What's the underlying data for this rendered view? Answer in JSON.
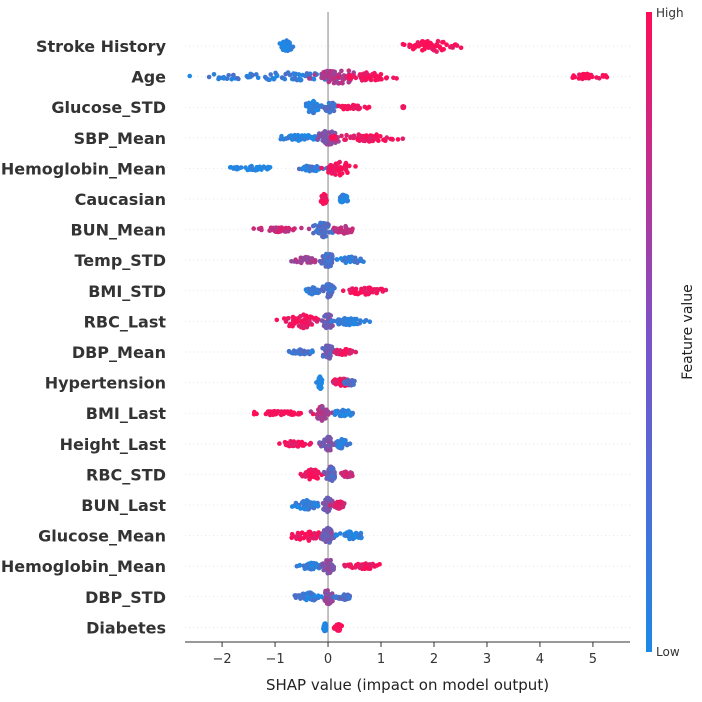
{
  "chart_data": {
    "type": "scatter",
    "subtype": "shap-beeswarm",
    "xlabel": "SHAP value (impact on model output)",
    "xlim": [
      -2.7,
      5.7
    ],
    "xticks": [
      -2,
      -1,
      0,
      1,
      2,
      3,
      4,
      5
    ],
    "colorbar": {
      "title": "Feature value",
      "high_label": "High",
      "low_label": "Low",
      "low_color": "#1e88e5",
      "high_color": "#ff0d57"
    },
    "features": [
      {
        "name": "Stroke History",
        "clusters": [
          {
            "center": -0.78,
            "spread": 0.12,
            "width": 0.8,
            "value": 0.0
          },
          {
            "center": 2.0,
            "spread": 0.55,
            "width": 0.75,
            "value": 1.0
          }
        ]
      },
      {
        "name": "Age",
        "clusters": [
          {
            "center": -0.9,
            "spread": 1.5,
            "width": 0.55,
            "value": 0.1
          },
          {
            "center": 0.2,
            "spread": 0.4,
            "width": 1.0,
            "value": 0.65
          },
          {
            "center": 0.8,
            "spread": 0.45,
            "width": 0.6,
            "value": 0.95
          },
          {
            "center": 4.9,
            "spread": 0.35,
            "width": 0.35,
            "value": 1.0
          }
        ]
      },
      {
        "name": "Glucose_STD",
        "clusters": [
          {
            "center": -0.3,
            "spread": 0.15,
            "width": 0.9,
            "value": 0.05
          },
          {
            "center": 0.05,
            "spread": 0.15,
            "width": 0.7,
            "value": 0.2
          },
          {
            "center": 0.45,
            "spread": 0.3,
            "width": 0.35,
            "value": 0.95
          },
          {
            "center": 1.42,
            "spread": 0.02,
            "width": 0.1,
            "value": 1.0
          }
        ]
      },
      {
        "name": "SBP_Mean",
        "clusters": [
          {
            "center": -0.5,
            "spread": 0.5,
            "width": 0.4,
            "value": 0.05
          },
          {
            "center": 0.0,
            "spread": 0.2,
            "width": 1.0,
            "value": 0.5
          },
          {
            "center": 0.8,
            "spread": 0.7,
            "width": 0.5,
            "value": 0.95
          }
        ]
      },
      {
        "name": "Hemoglobin_Mean",
        "clusters": [
          {
            "center": -1.45,
            "spread": 0.45,
            "width": 0.3,
            "value": 0.0
          },
          {
            "center": -0.3,
            "spread": 0.25,
            "width": 0.4,
            "value": 0.1
          },
          {
            "center": 0.2,
            "spread": 0.3,
            "width": 0.9,
            "value": 0.95
          }
        ]
      },
      {
        "name": "Caucasian",
        "clusters": [
          {
            "center": -0.08,
            "spread": 0.06,
            "width": 0.7,
            "value": 1.0
          },
          {
            "center": 0.3,
            "spread": 0.08,
            "width": 0.6,
            "value": 0.0
          }
        ]
      },
      {
        "name": "BUN_Mean",
        "clusters": [
          {
            "center": -0.9,
            "spread": 0.5,
            "width": 0.35,
            "value": 0.75
          },
          {
            "center": -0.1,
            "spread": 0.2,
            "width": 1.0,
            "value": 0.2
          },
          {
            "center": 0.3,
            "spread": 0.2,
            "width": 0.5,
            "value": 0.7
          }
        ]
      },
      {
        "name": "Temp_STD",
        "clusters": [
          {
            "center": -0.4,
            "spread": 0.25,
            "width": 0.45,
            "value": 0.6
          },
          {
            "center": 0.0,
            "spread": 0.15,
            "width": 1.0,
            "value": 0.25
          },
          {
            "center": 0.45,
            "spread": 0.25,
            "width": 0.45,
            "value": 0.1
          }
        ]
      },
      {
        "name": "BMI_STD",
        "clusters": [
          {
            "center": -0.3,
            "spread": 0.15,
            "width": 0.45,
            "value": 0.1
          },
          {
            "center": 0.0,
            "spread": 0.12,
            "width": 1.0,
            "value": 0.2
          },
          {
            "center": 0.7,
            "spread": 0.45,
            "width": 0.5,
            "value": 0.95
          }
        ]
      },
      {
        "name": "RBC_Last",
        "clusters": [
          {
            "center": -0.5,
            "spread": 0.35,
            "width": 0.9,
            "value": 0.95
          },
          {
            "center": 0.0,
            "spread": 0.12,
            "width": 1.0,
            "value": 0.35
          },
          {
            "center": 0.4,
            "spread": 0.35,
            "width": 0.5,
            "value": 0.05
          }
        ]
      },
      {
        "name": "DBP_Mean",
        "clusters": [
          {
            "center": -0.5,
            "spread": 0.3,
            "width": 0.35,
            "value": 0.15
          },
          {
            "center": 0.0,
            "spread": 0.12,
            "width": 1.0,
            "value": 0.3
          },
          {
            "center": 0.3,
            "spread": 0.25,
            "width": 0.4,
            "value": 0.9
          }
        ]
      },
      {
        "name": "Hypertension",
        "clusters": [
          {
            "center": -0.15,
            "spread": 0.05,
            "width": 0.9,
            "value": 0.0
          },
          {
            "center": 0.25,
            "spread": 0.2,
            "width": 0.55,
            "value": 0.9
          },
          {
            "center": 0.42,
            "spread": 0.12,
            "width": 0.4,
            "value": 0.2
          }
        ]
      },
      {
        "name": "BMI_Last",
        "clusters": [
          {
            "center": -0.85,
            "spread": 0.55,
            "width": 0.3,
            "value": 1.0
          },
          {
            "center": -0.1,
            "spread": 0.15,
            "width": 1.0,
            "value": 0.6
          },
          {
            "center": 0.3,
            "spread": 0.2,
            "width": 0.45,
            "value": 0.05
          }
        ]
      },
      {
        "name": "Height_Last",
        "clusters": [
          {
            "center": -0.6,
            "spread": 0.3,
            "width": 0.4,
            "value": 0.95
          },
          {
            "center": 0.0,
            "spread": 0.15,
            "width": 1.0,
            "value": 0.4
          },
          {
            "center": 0.25,
            "spread": 0.15,
            "width": 0.6,
            "value": 0.1
          }
        ]
      },
      {
        "name": "RBC_STD",
        "clusters": [
          {
            "center": -0.3,
            "spread": 0.2,
            "width": 0.7,
            "value": 0.95
          },
          {
            "center": 0.05,
            "spread": 0.12,
            "width": 1.0,
            "value": 0.3
          },
          {
            "center": 0.35,
            "spread": 0.15,
            "width": 0.4,
            "value": 0.75
          }
        ]
      },
      {
        "name": "BUN_Last",
        "clusters": [
          {
            "center": -0.4,
            "spread": 0.25,
            "width": 0.6,
            "value": 0.1
          },
          {
            "center": 0.0,
            "spread": 0.1,
            "width": 1.0,
            "value": 0.35
          },
          {
            "center": 0.2,
            "spread": 0.12,
            "width": 0.5,
            "value": 0.85
          }
        ]
      },
      {
        "name": "Glucose_Mean",
        "clusters": [
          {
            "center": -0.4,
            "spread": 0.35,
            "width": 0.7,
            "value": 0.95
          },
          {
            "center": 0.0,
            "spread": 0.12,
            "width": 1.0,
            "value": 0.4
          },
          {
            "center": 0.45,
            "spread": 0.3,
            "width": 0.55,
            "value": 0.05
          }
        ]
      },
      {
        "name": "Hemoglobin_Mean",
        "clusters": [
          {
            "center": -0.3,
            "spread": 0.3,
            "width": 0.45,
            "value": 0.1
          },
          {
            "center": 0.0,
            "spread": 0.12,
            "width": 1.0,
            "value": 0.45
          },
          {
            "center": 0.7,
            "spread": 0.45,
            "width": 0.35,
            "value": 0.95
          }
        ]
      },
      {
        "name": "DBP_STD",
        "clusters": [
          {
            "center": -0.35,
            "spread": 0.25,
            "width": 0.55,
            "value": 0.1
          },
          {
            "center": 0.0,
            "spread": 0.1,
            "width": 1.0,
            "value": 0.55
          },
          {
            "center": 0.3,
            "spread": 0.15,
            "width": 0.4,
            "value": 0.2
          }
        ]
      },
      {
        "name": "Diabetes",
        "clusters": [
          {
            "center": -0.06,
            "spread": 0.03,
            "width": 0.6,
            "value": 0.0
          },
          {
            "center": 0.2,
            "spread": 0.08,
            "width": 0.45,
            "value": 1.0
          }
        ]
      }
    ]
  }
}
